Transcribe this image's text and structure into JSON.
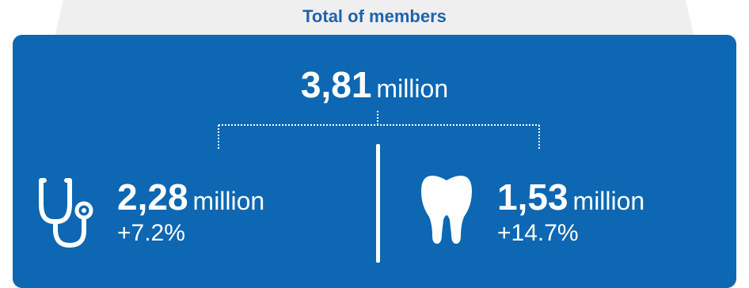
{
  "title": "Total of members",
  "total": {
    "value": "3,81",
    "unit": "million"
  },
  "left": {
    "icon": "stethoscope-icon",
    "value": "2,28",
    "unit": "million",
    "change": "+7.2%"
  },
  "right": {
    "icon": "tooth-icon",
    "value": "1,53",
    "unit": "million",
    "change": "+14.7%"
  },
  "colors": {
    "panel": "#0d67b2",
    "title": "#1f63aa",
    "trapezoid": "#efefef",
    "text": "#ffffff"
  }
}
